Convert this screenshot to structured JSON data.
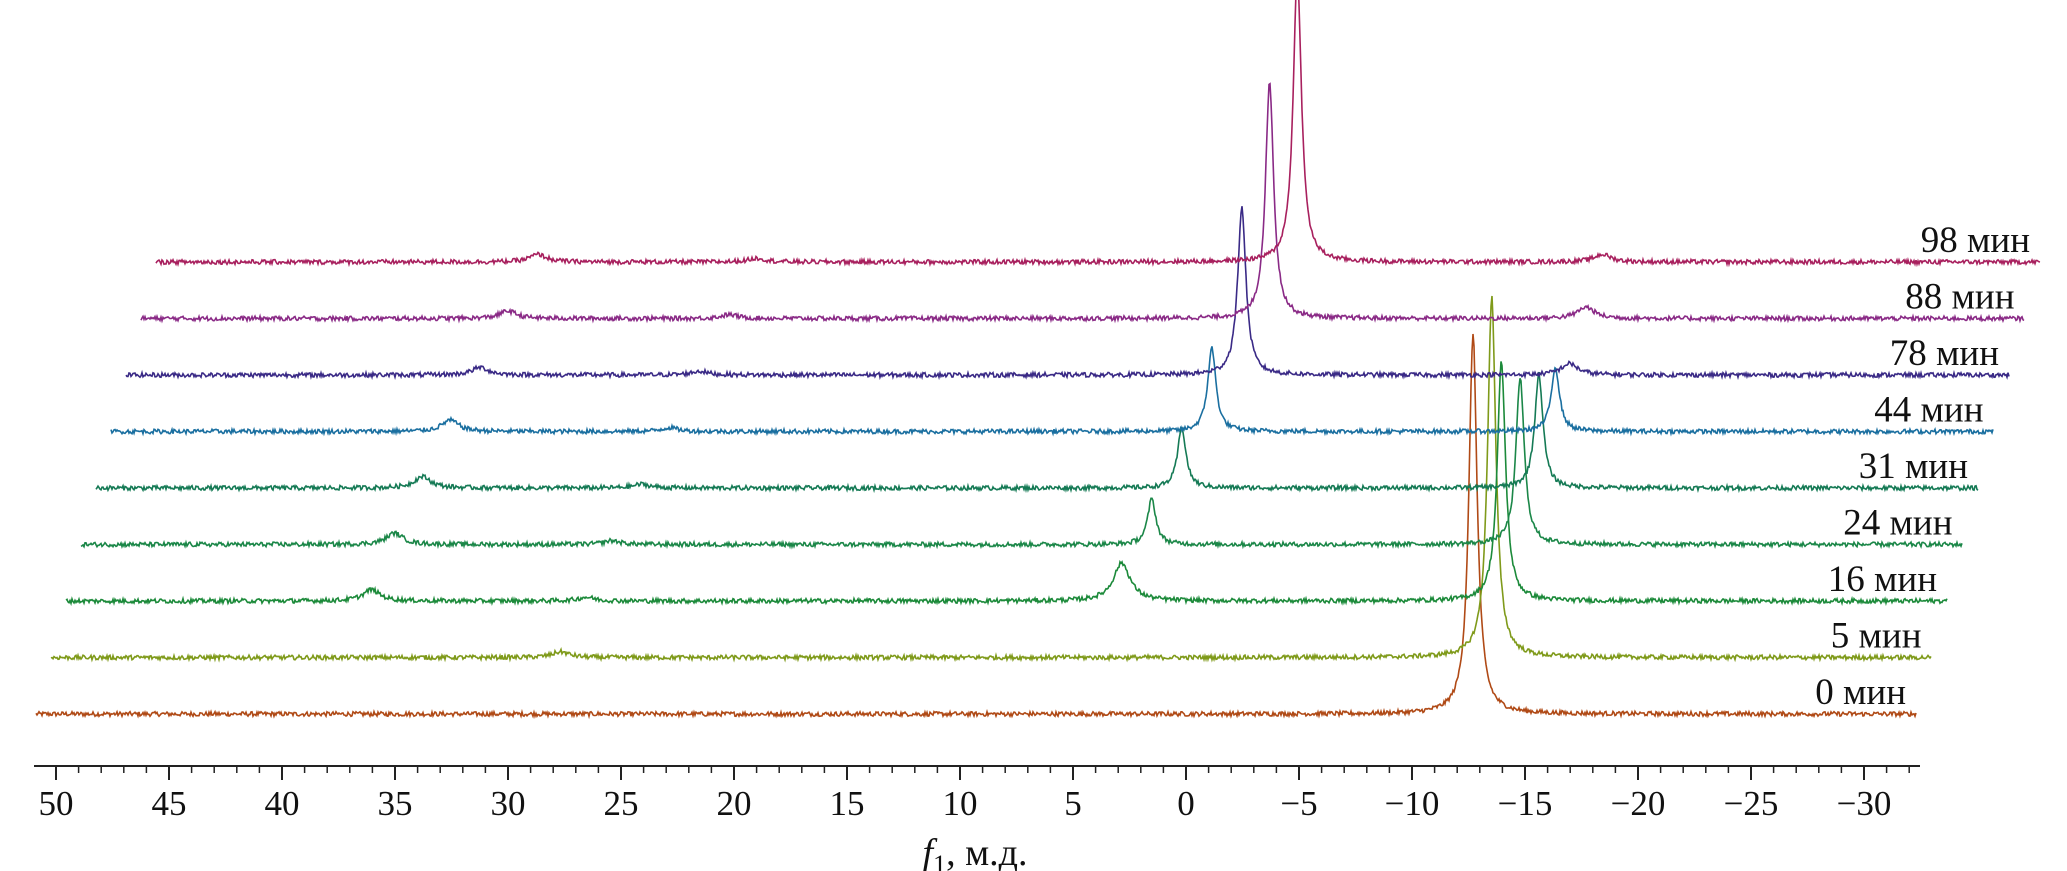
{
  "chart_data": {
    "type": "line",
    "title": "",
    "xlabel_var": "f",
    "xlabel_sub": "1",
    "xlabel_unit": ", м.д.",
    "xlim": [
      51,
      -32
    ],
    "x_reversed": true,
    "x_ticks": [
      50,
      45,
      40,
      35,
      30,
      25,
      20,
      15,
      10,
      5,
      0,
      -5,
      -10,
      -15,
      -20,
      -25,
      -30
    ],
    "x_tick_labels": [
      "50",
      "45",
      "40",
      "35",
      "30",
      "25",
      "20",
      "15",
      "10",
      "5",
      "0",
      "−5",
      "−10",
      "−15",
      "−20",
      "−25",
      "−30"
    ],
    "grid": false,
    "stacked_offset": true,
    "series": [
      {
        "name": "0 мин",
        "color": "#b04a16",
        "peaks": [
          {
            "x": -12.7,
            "height": 1.0
          }
        ]
      },
      {
        "name": "5 мин",
        "color": "#7f9a1a",
        "peaks": [
          {
            "x": -12.9,
            "height": 0.95
          },
          {
            "x": 28.3,
            "height": 0.015
          }
        ]
      },
      {
        "name": "16 мин",
        "color": "#1c8a3a",
        "peaks": [
          {
            "x": -12.7,
            "height": 0.63
          },
          {
            "x": 4.1,
            "height": 0.1
          },
          {
            "x": 37.3,
            "height": 0.03
          },
          {
            "x": 27.8,
            "height": 0.01
          }
        ]
      },
      {
        "name": "24 мин",
        "color": "#1b8748",
        "peaks": [
          {
            "x": -12.9,
            "height": 0.44
          },
          {
            "x": 3.4,
            "height": 0.12
          },
          {
            "x": 36.9,
            "height": 0.03
          },
          {
            "x": 27.3,
            "height": 0.01
          }
        ]
      },
      {
        "name": "31 мин",
        "color": "#157a55",
        "peaks": [
          {
            "x": -13.1,
            "height": 0.3
          },
          {
            "x": 2.7,
            "height": 0.16
          },
          {
            "x": 36.3,
            "height": 0.03
          },
          {
            "x": 26.6,
            "height": 0.01
          }
        ]
      },
      {
        "name": "44 мин",
        "color": "#1a6fa0",
        "peaks": [
          {
            "x": -13.2,
            "height": 0.17
          },
          {
            "x": 2.0,
            "height": 0.22
          },
          {
            "x": 35.7,
            "height": 0.03
          },
          {
            "x": 26.0,
            "height": 0.01
          }
        ]
      },
      {
        "name": "78 мин",
        "color": "#3a2a86",
        "peaks": [
          {
            "x": -13.2,
            "height": 0.03
          },
          {
            "x": 1.3,
            "height": 0.44
          },
          {
            "x": 35.0,
            "height": 0.02
          },
          {
            "x": 25.3,
            "height": 0.01
          }
        ]
      },
      {
        "name": "88 мин",
        "color": "#8a2a86",
        "peaks": [
          {
            "x": -13.3,
            "height": 0.03
          },
          {
            "x": 0.7,
            "height": 0.62
          },
          {
            "x": 34.4,
            "height": 0.02
          },
          {
            "x": 24.6,
            "height": 0.01
          }
        ]
      },
      {
        "name": "98 мин",
        "color": "#a8205e",
        "peaks": [
          {
            "x": -13.4,
            "height": 0.02
          },
          {
            "x": 0.1,
            "height": 0.76
          },
          {
            "x": 33.7,
            "height": 0.02
          },
          {
            "x": 24.0,
            "height": 0.01
          }
        ]
      }
    ]
  }
}
